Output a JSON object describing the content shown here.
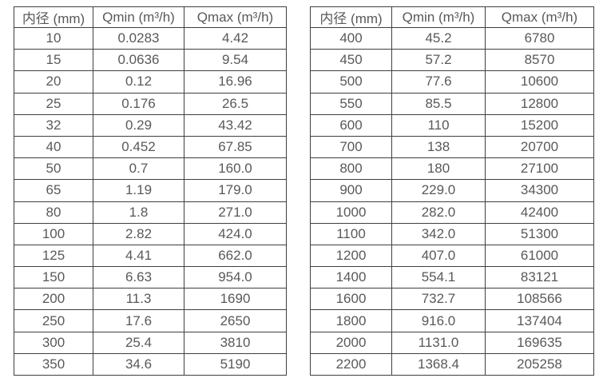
{
  "colors": {
    "background": "#ffffff",
    "text": "#595959",
    "border": "#3f3f3f"
  },
  "tables": [
    {
      "id": "left",
      "headers": [
        "内径 (mm)",
        "Qmin (m³/h)",
        "Qmax (m³/h)"
      ],
      "rows": [
        [
          "10",
          "0.0283",
          "4.42"
        ],
        [
          "15",
          "0.0636",
          "9.54"
        ],
        [
          "20",
          "0.12",
          "16.96"
        ],
        [
          "25",
          "0.176",
          "26.5"
        ],
        [
          "32",
          "0.29",
          "43.42"
        ],
        [
          "40",
          "0.452",
          "67.85"
        ],
        [
          "50",
          "0.7",
          "160.0"
        ],
        [
          "65",
          "1.19",
          "179.0"
        ],
        [
          "80",
          "1.8",
          "271.0"
        ],
        [
          "100",
          "2.82",
          "424.0"
        ],
        [
          "125",
          "4.41",
          "662.0"
        ],
        [
          "150",
          "6.63",
          "954.0"
        ],
        [
          "200",
          "11.3",
          "1690"
        ],
        [
          "250",
          "17.6",
          "2650"
        ],
        [
          "300",
          "25.4",
          "3810"
        ],
        [
          "350",
          "34.6",
          "5190"
        ]
      ]
    },
    {
      "id": "right",
      "headers": [
        "内径 (mm)",
        "Qmin (m³/h)",
        "Qmax (m³/h)"
      ],
      "rows": [
        [
          "400",
          "45.2",
          "6780"
        ],
        [
          "450",
          "57.2",
          "8570"
        ],
        [
          "500",
          "77.6",
          "10600"
        ],
        [
          "550",
          "85.5",
          "12800"
        ],
        [
          "600",
          "110",
          "15200"
        ],
        [
          "700",
          "138",
          "20700"
        ],
        [
          "800",
          "180",
          "27100"
        ],
        [
          "900",
          "229.0",
          "34300"
        ],
        [
          "1000",
          "282.0",
          "42400"
        ],
        [
          "1100",
          "342.0",
          "51300"
        ],
        [
          "1200",
          "407.0",
          "61000"
        ],
        [
          "1400",
          "554.1",
          "83121"
        ],
        [
          "1600",
          "732.7",
          "108566"
        ],
        [
          "1800",
          "916.0",
          "137404"
        ],
        [
          "2000",
          "1131.0",
          "169635"
        ],
        [
          "2200",
          "1368.4",
          "205258"
        ]
      ]
    }
  ]
}
